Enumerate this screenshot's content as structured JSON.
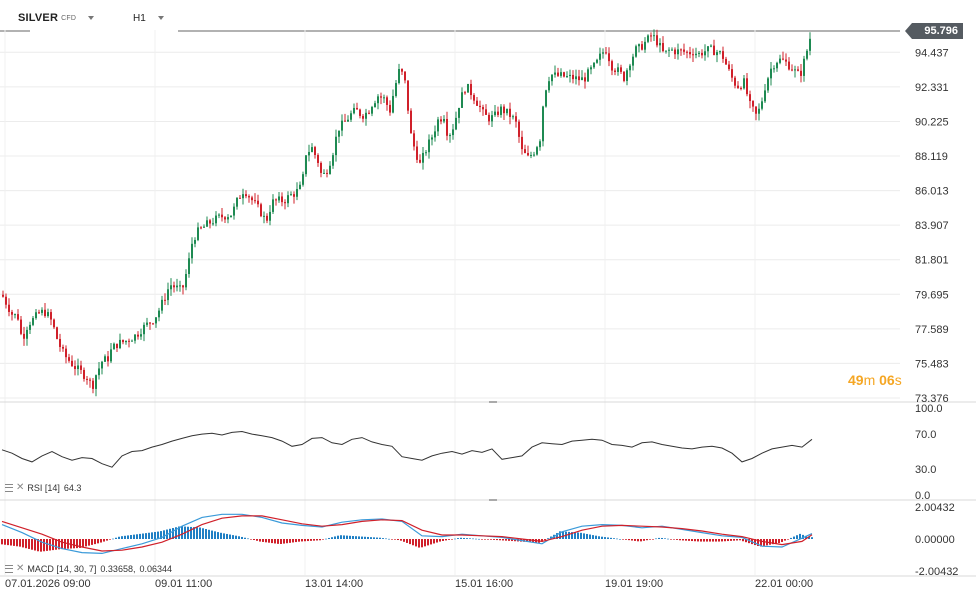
{
  "header": {
    "symbol": "SILVER",
    "symbol_tag": "CFD",
    "timeframe": "H1"
  },
  "current_price": "95.796",
  "countdown": {
    "minutes": "49",
    "minutes_unit": "m",
    "seconds": "06",
    "seconds_unit": "s"
  },
  "colors": {
    "up": "#1e8a52",
    "down": "#d0202a",
    "rsi_line": "#333333",
    "macd_up": "#1f7fc4",
    "macd_down": "#d0202a",
    "signal_line": "#d0202a",
    "macd_line": "#3a9ad9",
    "price_tag": "#555b61"
  },
  "chart_data": [
    {
      "type": "candlestick",
      "ylim": [
        73.376,
        96.5
      ],
      "y_ticks": [
        "94.437",
        "92.331",
        "90.225",
        "88.119",
        "86.013",
        "83.907",
        "81.801",
        "79.695",
        "77.589",
        "75.483",
        "73.376"
      ],
      "x_ticks": [
        "07.01.2026  09:00",
        "09.01  11:00",
        "13.01  14:00",
        "15.01  16:00",
        "19.01  19:00",
        "22.01  00:00"
      ],
      "close_path": [
        [
          0,
          79.9
        ],
        [
          6,
          79.2
        ],
        [
          12,
          78.5
        ],
        [
          18,
          78.3
        ],
        [
          22,
          76.9
        ],
        [
          28,
          77.9
        ],
        [
          34,
          78.2
        ],
        [
          40,
          78.6
        ],
        [
          46,
          78.6
        ],
        [
          52,
          78.0
        ],
        [
          58,
          76.8
        ],
        [
          64,
          76.0
        ],
        [
          70,
          75.6
        ],
        [
          76,
          75.2
        ],
        [
          82,
          74.9
        ],
        [
          88,
          74.6
        ],
        [
          92,
          74.0
        ],
        [
          96,
          74.8
        ],
        [
          102,
          75.6
        ],
        [
          108,
          75.8
        ],
        [
          112,
          76.4
        ],
        [
          118,
          76.7
        ],
        [
          124,
          76.8
        ],
        [
          130,
          77.0
        ],
        [
          136,
          77.2
        ],
        [
          142,
          77.6
        ],
        [
          148,
          77.9
        ],
        [
          154,
          78.2
        ],
        [
          158,
          78.6
        ],
        [
          164,
          79.4
        ],
        [
          170,
          80.3
        ],
        [
          176,
          80.1
        ],
        [
          182,
          79.9
        ],
        [
          188,
          81.4
        ],
        [
          192,
          82.8
        ],
        [
          196,
          83.4
        ],
        [
          202,
          83.7
        ],
        [
          208,
          84.0
        ],
        [
          214,
          84.2
        ],
        [
          220,
          84.4
        ],
        [
          226,
          84.5
        ],
        [
          232,
          84.6
        ],
        [
          238,
          85.5
        ],
        [
          244,
          86.1
        ],
        [
          250,
          85.6
        ],
        [
          256,
          85.1
        ],
        [
          262,
          84.6
        ],
        [
          266,
          84.1
        ],
        [
          272,
          85.3
        ],
        [
          278,
          85.4
        ],
        [
          284,
          85.4
        ],
        [
          290,
          85.7
        ],
        [
          296,
          85.9
        ],
        [
          302,
          86.3
        ],
        [
          306,
          88.3
        ],
        [
          312,
          88.6
        ],
        [
          318,
          87.8
        ],
        [
          322,
          86.8
        ],
        [
          328,
          87.4
        ],
        [
          334,
          88.6
        ],
        [
          338,
          89.8
        ],
        [
          344,
          90.1
        ],
        [
          350,
          90.6
        ],
        [
          356,
          90.9
        ],
        [
          362,
          90.6
        ],
        [
          368,
          90.8
        ],
        [
          372,
          91.3
        ],
        [
          378,
          91.8
        ],
        [
          384,
          91.6
        ],
        [
          390,
          90.9
        ],
        [
          394,
          92.1
        ],
        [
          400,
          93.5
        ],
        [
          406,
          92.4
        ],
        [
          410,
          89.6
        ],
        [
          414,
          88.7
        ],
        [
          420,
          87.6
        ],
        [
          426,
          88.5
        ],
        [
          432,
          89.3
        ],
        [
          438,
          90.3
        ],
        [
          444,
          90.6
        ],
        [
          448,
          89.3
        ],
        [
          454,
          90.0
        ],
        [
          460,
          91.5
        ],
        [
          466,
          92.4
        ],
        [
          472,
          91.9
        ],
        [
          478,
          91.3
        ],
        [
          484,
          90.6
        ],
        [
          490,
          90.4
        ],
        [
          496,
          90.6
        ],
        [
          500,
          91.0
        ],
        [
          506,
          90.8
        ],
        [
          512,
          90.5
        ],
        [
          516,
          90.1
        ],
        [
          522,
          88.4
        ],
        [
          528,
          88.0
        ],
        [
          534,
          88.4
        ],
        [
          540,
          89.2
        ],
        [
          544,
          91.9
        ],
        [
          550,
          93.1
        ],
        [
          556,
          93.0
        ],
        [
          562,
          93.0
        ],
        [
          568,
          92.9
        ],
        [
          572,
          92.9
        ],
        [
          578,
          92.8
        ],
        [
          584,
          92.8
        ],
        [
          590,
          93.3
        ],
        [
          596,
          93.7
        ],
        [
          602,
          94.4
        ],
        [
          606,
          94.6
        ],
        [
          612,
          93.6
        ],
        [
          618,
          93.3
        ],
        [
          624,
          92.9
        ],
        [
          630,
          93.9
        ],
        [
          636,
          94.6
        ],
        [
          640,
          94.7
        ],
        [
          646,
          95.1
        ],
        [
          652,
          95.5
        ],
        [
          658,
          95.0
        ],
        [
          664,
          94.3
        ],
        [
          670,
          94.6
        ],
        [
          676,
          94.5
        ],
        [
          682,
          94.5
        ],
        [
          688,
          94.4
        ],
        [
          694,
          94.5
        ],
        [
          698,
          94.3
        ],
        [
          704,
          94.5
        ],
        [
          710,
          94.6
        ],
        [
          716,
          94.5
        ],
        [
          722,
          94.3
        ],
        [
          728,
          93.4
        ],
        [
          734,
          92.6
        ],
        [
          738,
          92.4
        ],
        [
          744,
          92.6
        ],
        [
          750,
          91.2
        ],
        [
          756,
          90.6
        ],
        [
          760,
          91.0
        ],
        [
          766,
          92.6
        ],
        [
          772,
          93.6
        ],
        [
          778,
          94.0
        ],
        [
          784,
          93.9
        ],
        [
          790,
          93.6
        ],
        [
          796,
          93.2
        ],
        [
          800,
          93.0
        ],
        [
          806,
          94.3
        ],
        [
          812,
          95.8
        ]
      ]
    },
    {
      "type": "line",
      "name": "RSI [14]",
      "value_label": "64.3",
      "ylim": [
        0,
        100
      ],
      "y_ticks": [
        "100.0",
        "70.0",
        "30.0",
        "0.0"
      ],
      "x": [
        0,
        10,
        20,
        30,
        40,
        50,
        60,
        70,
        80,
        90,
        100,
        110,
        120,
        130,
        140,
        150,
        160,
        170,
        180,
        190,
        200,
        210,
        220,
        230,
        240,
        250,
        260,
        270,
        280,
        290,
        300,
        310,
        320,
        330,
        340,
        350,
        360,
        370,
        380,
        390,
        400,
        410,
        420,
        430,
        440,
        450,
        460,
        470,
        480,
        490,
        500,
        510,
        520,
        530,
        540,
        550,
        560,
        570,
        580,
        590,
        600,
        610,
        620,
        630,
        640,
        650,
        660,
        670,
        680,
        690,
        700,
        710,
        720,
        730,
        740,
        750,
        760,
        770,
        780,
        790,
        800,
        810
      ],
      "values": [
        52,
        48,
        42,
        38,
        45,
        50,
        44,
        40,
        43,
        42,
        36,
        32,
        45,
        50,
        51,
        55,
        58,
        62,
        65,
        68,
        70,
        71,
        69,
        72,
        73,
        70,
        68,
        66,
        62,
        56,
        58,
        65,
        66,
        60,
        58,
        64,
        66,
        61,
        58,
        56,
        44,
        42,
        40,
        45,
        48,
        50,
        47,
        51,
        49,
        53,
        41,
        43,
        45,
        55,
        60,
        59,
        58,
        62,
        63,
        64,
        63,
        58,
        57,
        55,
        60,
        61,
        58,
        56,
        54,
        53,
        55,
        56,
        54,
        48,
        38,
        42,
        48,
        53,
        55,
        57,
        55,
        64
      ]
    },
    {
      "type": "line+bar",
      "name": "MACD [14, 30, 7]",
      "value_labels": [
        "0.33658",
        "0.06344"
      ],
      "ylim": [
        -2.00432,
        2.00432
      ],
      "y_ticks": [
        "2.00432",
        "0.00000",
        "-2.00432"
      ],
      "x": [
        0,
        20,
        40,
        60,
        80,
        100,
        120,
        140,
        160,
        180,
        200,
        220,
        240,
        260,
        280,
        300,
        320,
        340,
        360,
        380,
        400,
        420,
        440,
        460,
        480,
        500,
        520,
        540,
        560,
        580,
        600,
        620,
        640,
        660,
        680,
        700,
        720,
        740,
        760,
        780,
        800,
        810
      ],
      "macd": [
        0.9,
        0.4,
        -0.2,
        -0.6,
        -0.85,
        -0.9,
        -0.6,
        -0.3,
        0.1,
        0.8,
        1.35,
        1.55,
        1.55,
        1.35,
        1.0,
        0.85,
        0.75,
        1.05,
        1.2,
        1.25,
        1.1,
        0.2,
        0.15,
        0.3,
        0.2,
        0.1,
        -0.1,
        -0.3,
        0.45,
        0.8,
        0.9,
        0.85,
        0.7,
        0.8,
        0.6,
        0.4,
        0.2,
        0.1,
        -0.45,
        -0.5,
        0.05,
        0.34
      ],
      "signal": [
        1.1,
        0.7,
        0.3,
        -0.2,
        -0.5,
        -0.75,
        -0.7,
        -0.5,
        -0.2,
        0.3,
        0.9,
        1.3,
        1.45,
        1.45,
        1.2,
        0.95,
        0.8,
        0.9,
        1.1,
        1.2,
        1.15,
        0.55,
        0.25,
        0.25,
        0.2,
        0.15,
        0.0,
        -0.15,
        0.15,
        0.55,
        0.8,
        0.85,
        0.8,
        0.75,
        0.65,
        0.5,
        0.3,
        0.15,
        -0.15,
        -0.35,
        -0.15,
        0.27
      ]
    }
  ]
}
